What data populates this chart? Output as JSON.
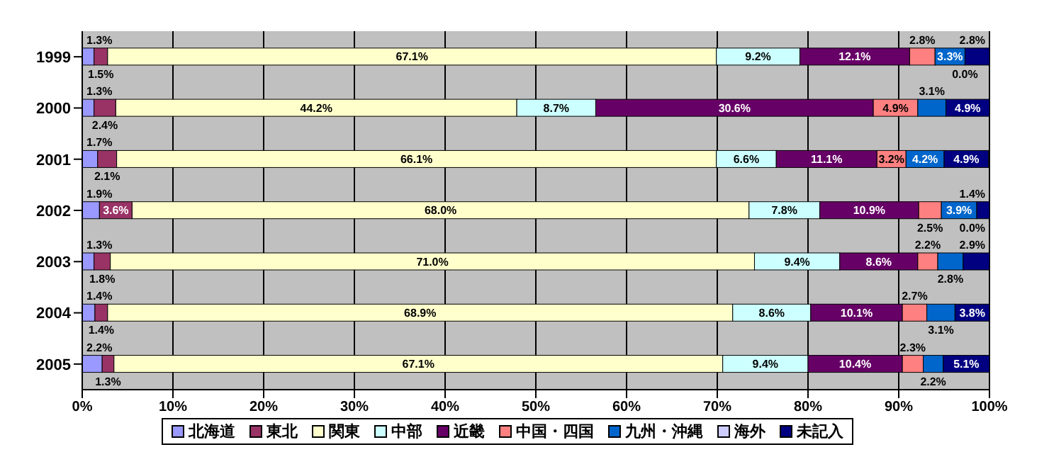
{
  "chart_data": {
    "type": "bar",
    "orientation": "horizontal",
    "stacked": true,
    "categories": [
      "1999",
      "2000",
      "2001",
      "2002",
      "2003",
      "2004",
      "2005"
    ],
    "series": [
      {
        "name": "北海道",
        "color": "#9999ff",
        "values": [
          1.3,
          1.3,
          1.7,
          1.9,
          1.3,
          1.4,
          2.2
        ],
        "value_labels": [
          "1.3%",
          "1.3%",
          "1.7%",
          "1.9%",
          "1.3%",
          "1.4%",
          "2.2%"
        ]
      },
      {
        "name": "東北",
        "color": "#993366",
        "values": [
          1.5,
          2.4,
          2.1,
          3.6,
          1.8,
          1.4,
          1.3
        ],
        "value_labels": [
          "1.5%",
          "2.4%",
          "2.1%",
          "3.6%",
          "1.8%",
          "1.4%",
          "1.3%"
        ]
      },
      {
        "name": "関東",
        "color": "#ffffcc",
        "values": [
          67.1,
          44.2,
          66.1,
          68.0,
          71.0,
          68.9,
          67.1
        ],
        "value_labels": [
          "67.1%",
          "44.2%",
          "66.1%",
          "68.0%",
          "71.0%",
          "68.9%",
          "67.1%"
        ]
      },
      {
        "name": "中部",
        "color": "#ccffff",
        "values": [
          9.2,
          8.7,
          6.6,
          7.8,
          9.4,
          8.6,
          9.4
        ],
        "value_labels": [
          "9.2%",
          "8.7%",
          "6.6%",
          "7.8%",
          "9.4%",
          "8.6%",
          "9.4%"
        ]
      },
      {
        "name": "近畿",
        "color": "#660066",
        "values": [
          12.1,
          30.6,
          11.1,
          10.9,
          8.6,
          10.1,
          10.4
        ],
        "value_labels": [
          "12.1%",
          "30.6%",
          "11.1%",
          "10.9%",
          "8.6%",
          "10.1%",
          "10.4%"
        ]
      },
      {
        "name": "中国・四国",
        "color": "#ff8080",
        "values": [
          2.8,
          4.9,
          3.2,
          2.5,
          2.2,
          2.7,
          2.3
        ],
        "value_labels": [
          "2.8%",
          "4.9%",
          "3.2%",
          "2.5%",
          "2.2%",
          "2.7%",
          "2.3%"
        ]
      },
      {
        "name": "九州・沖縄",
        "color": "#0066cc",
        "values": [
          3.3,
          3.1,
          4.2,
          3.9,
          2.8,
          3.1,
          2.2
        ],
        "value_labels": [
          "3.3%",
          "3.1%",
          "4.2%",
          "3.9%",
          "2.8%",
          "3.1%",
          "2.2%"
        ]
      },
      {
        "name": "海外",
        "color": "#ccccff",
        "values": [
          0.0,
          0,
          0,
          0.0,
          0,
          0,
          0
        ],
        "value_labels": [
          "0.0%",
          null,
          null,
          "0.0%",
          null,
          null,
          null
        ]
      },
      {
        "name": "未記入",
        "color": "#000080",
        "values": [
          2.8,
          4.9,
          4.9,
          1.4,
          2.9,
          3.8,
          5.1
        ],
        "value_labels": [
          "2.8%",
          "4.9%",
          "4.9%",
          "1.4%",
          "2.9%",
          "3.8%",
          "5.1%"
        ]
      }
    ],
    "xlim": [
      0,
      100
    ],
    "xticks": [
      {
        "value": 0,
        "label": "0%"
      },
      {
        "value": 10,
        "label": "10%"
      },
      {
        "value": 20,
        "label": "20%"
      },
      {
        "value": 30,
        "label": "30%"
      },
      {
        "value": 40,
        "label": "40%"
      },
      {
        "value": 50,
        "label": "50%"
      },
      {
        "value": 60,
        "label": "60%"
      },
      {
        "value": 70,
        "label": "70%"
      },
      {
        "value": 80,
        "label": "80%"
      },
      {
        "value": 90,
        "label": "90%"
      },
      {
        "value": 100,
        "label": "100%"
      }
    ],
    "grid": "x",
    "legend": "bottom"
  }
}
